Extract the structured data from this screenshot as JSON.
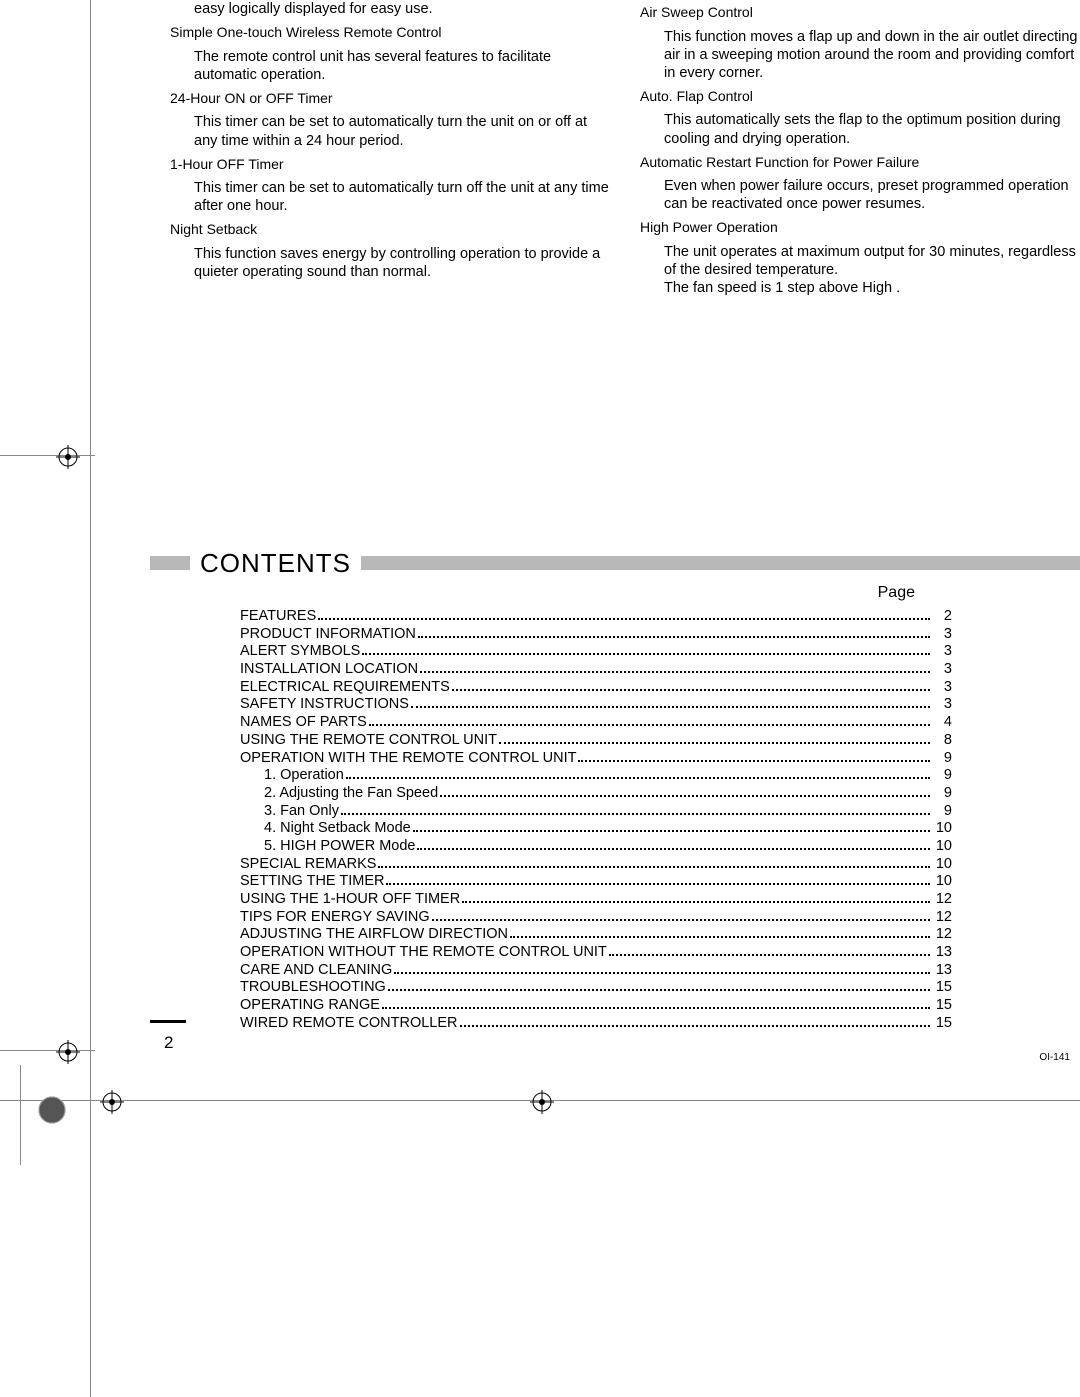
{
  "features_left": [
    {
      "title": null,
      "desc": "easy logically displayed for easy use."
    },
    {
      "title": "Simple One-touch Wireless Remote Control",
      "desc": "The remote control unit has several features to facilitate automatic operation."
    },
    {
      "title": "24-Hour ON or OFF Timer",
      "desc": "This timer can be set to automatically turn the unit on or off at any time within a 24 hour period."
    },
    {
      "title": "1-Hour OFF Timer",
      "desc": "This timer can be set to automatically turn off the unit at any time after one hour."
    },
    {
      "title": "Night Setback",
      "desc": "This function saves energy by controlling operation to provide a quieter operating sound than normal."
    }
  ],
  "features_right": [
    {
      "title": "Air Sweep Control",
      "desc": "This function moves a flap up and down in the air outlet directing air in a sweeping motion around the room and providing comfort in every corner."
    },
    {
      "title": "Auto. Flap Control",
      "desc": "This automatically sets the flap to the optimum position during cooling and drying operation."
    },
    {
      "title": "Automatic Restart Function for Power Failure",
      "desc": "Even when power failure occurs, preset programmed operation can be reactivated once power resumes."
    },
    {
      "title": "High Power Operation",
      "desc": "The unit operates at maximum output for 30 minutes, regardless of the desired temperature.\nThe fan speed is 1 step above  High ."
    }
  ],
  "contents_title": "CONTENTS",
  "page_label": "Page",
  "toc": [
    {
      "label": "FEATURES",
      "page": "2",
      "sub": false
    },
    {
      "label": "PRODUCT INFORMATION",
      "page": "3",
      "sub": false
    },
    {
      "label": "ALERT SYMBOLS",
      "page": "3",
      "sub": false
    },
    {
      "label": "INSTALLATION LOCATION",
      "page": "3",
      "sub": false
    },
    {
      "label": "ELECTRICAL REQUIREMENTS",
      "page": "3",
      "sub": false
    },
    {
      "label": "SAFETY INSTRUCTIONS",
      "page": "3",
      "sub": false
    },
    {
      "label": "NAMES OF PARTS",
      "page": "4",
      "sub": false
    },
    {
      "label": "USING THE REMOTE CONTROL UNIT",
      "page": "8",
      "sub": false
    },
    {
      "label": "OPERATION WITH THE REMOTE CONTROL UNIT",
      "page": "9",
      "sub": false
    },
    {
      "label": "1. Operation",
      "page": "9",
      "sub": true
    },
    {
      "label": "2. Adjusting the Fan Speed",
      "page": "9",
      "sub": true
    },
    {
      "label": "3. Fan Only",
      "page": "9",
      "sub": true
    },
    {
      "label": "4. Night Setback Mode",
      "page": "10",
      "sub": true
    },
    {
      "label": "5. HIGH POWER Mode",
      "page": "10",
      "sub": true
    },
    {
      "label": "SPECIAL REMARKS",
      "page": "10",
      "sub": false
    },
    {
      "label": "SETTING THE TIMER",
      "page": "10",
      "sub": false
    },
    {
      "label": "USING THE 1-HOUR OFF TIMER",
      "page": "12",
      "sub": false
    },
    {
      "label": "TIPS FOR ENERGY SAVING",
      "page": "12",
      "sub": false
    },
    {
      "label": "ADJUSTING THE AIRFLOW DIRECTION",
      "page": "12",
      "sub": false
    },
    {
      "label": "OPERATION WITHOUT THE REMOTE CONTROL UNIT",
      "page": "13",
      "sub": false
    },
    {
      "label": "CARE AND CLEANING",
      "page": "13",
      "sub": false
    },
    {
      "label": "TROUBLESHOOTING",
      "page": "15",
      "sub": false
    },
    {
      "label": "OPERATING RANGE",
      "page": "15",
      "sub": false
    },
    {
      "label": "WIRED REMOTE CONTROLLER",
      "page": "15",
      "sub": false
    }
  ],
  "page_number": "2",
  "doc_code": "OI-141",
  "colors": {
    "header_bar": "#b8b8b8",
    "text": "#000000",
    "hairline": "#888888"
  }
}
